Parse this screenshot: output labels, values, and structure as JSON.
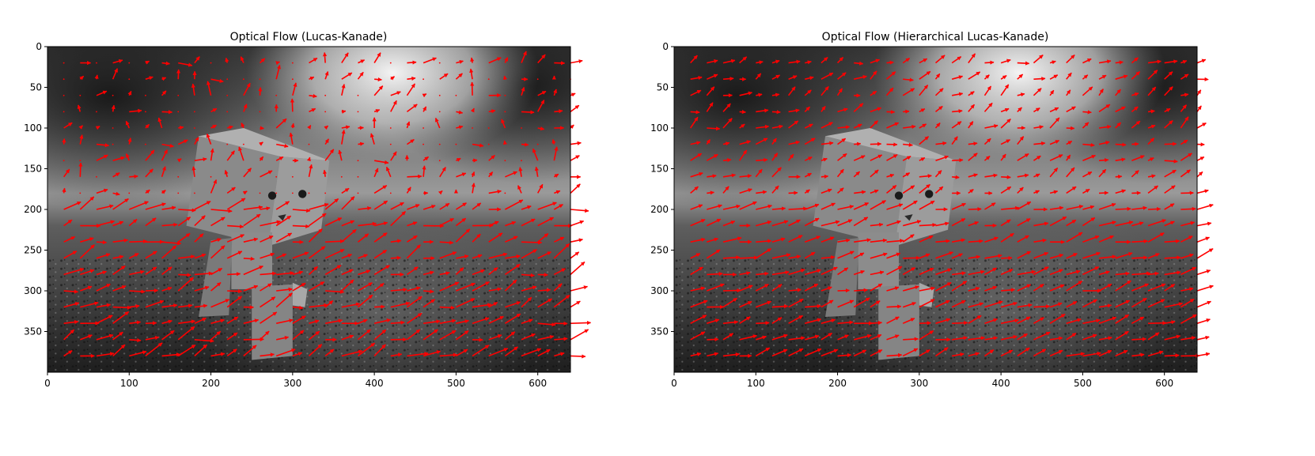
{
  "colors": {
    "arrow": "#ff0000",
    "background": "#ffffff",
    "axis": "#000000"
  },
  "chart_data": [
    {
      "type": "quiver",
      "title": "Optical Flow (Lucas-Kanade)",
      "background": "grayscale photograph of a cardboard robot figure (Danbo) standing on a gravel path, trees and sky blurred in background",
      "xlim": [
        0,
        640
      ],
      "ylim": [
        400,
        0
      ],
      "xticks": [
        0,
        100,
        200,
        300,
        400,
        500,
        600
      ],
      "yticks": [
        0,
        50,
        100,
        150,
        200,
        250,
        300,
        350
      ],
      "grid": false,
      "vectors_summary": "red flow arrows on a regular grid, mostly pointing right and slightly upward; long arrows in the lower gravel region, short or near-zero arrows in the upper sky and tree region"
    },
    {
      "type": "quiver",
      "title": "Optical Flow (Hierarchical Lucas-Kanade)",
      "background": "grayscale photograph of a cardboard robot figure (Danbo) standing on a gravel path, trees and sky blurred in background",
      "xlim": [
        0,
        640
      ],
      "ylim": [
        400,
        0
      ],
      "xticks": [
        0,
        100,
        200,
        300,
        400,
        500,
        600
      ],
      "yticks": [
        0,
        50,
        100,
        150,
        200,
        250,
        300,
        350
      ],
      "grid": false,
      "vectors_summary": "red flow arrows on a regular grid, predominantly pointing right and up-right, more uniform than the Lucas-Kanade result"
    }
  ]
}
